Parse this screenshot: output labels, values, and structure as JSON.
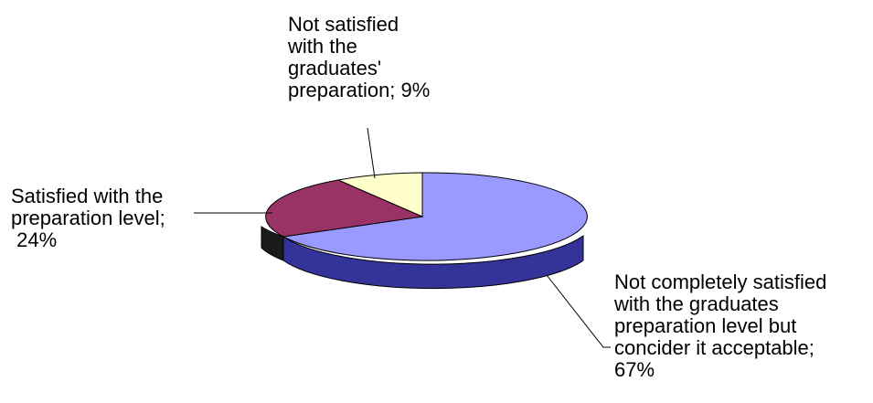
{
  "chart_data": {
    "type": "pie",
    "variant": "3d",
    "slices": [
      {
        "label": "Not completely satisfied\nwith the graduates\npreparation level but\nconcider it acceptable;\n67%",
        "value": 67,
        "color": "#9999ff"
      },
      {
        "label": "Satisfied with the\npreparation level;\n 24%",
        "value": 24,
        "color": "#993366"
      },
      {
        "label": "Not satisfied\nwith the\ngraduates'\npreparation; 9%",
        "value": 9,
        "color": "#ffffcc"
      }
    ],
    "legend": "none"
  }
}
